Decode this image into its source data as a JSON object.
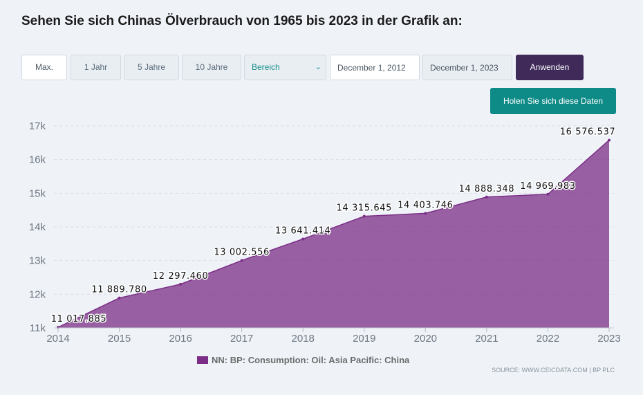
{
  "header": {
    "title": "Sehen Sie sich Chinas Ölverbrauch von 1965 bis 2023 in der Grafik an:"
  },
  "controls": {
    "range_buttons": [
      "Max.",
      "1 Jahr",
      "5 Jahre",
      "10 Jahre"
    ],
    "range_select": "Bereich",
    "start_date": "December 1, 2012",
    "end_date": "December 1, 2023",
    "apply_label": "Anwenden",
    "get_data_label": "Holen Sie sich diese Daten"
  },
  "colors": {
    "series": "#7b2e86",
    "apply": "#3f2a5a",
    "get_data": "#0f8b87"
  },
  "chart_data": {
    "type": "area",
    "title": "",
    "xlabel": "",
    "ylabel": "",
    "x": [
      "2014",
      "2015",
      "2016",
      "2017",
      "2018",
      "2019",
      "2020",
      "2021",
      "2022",
      "2023"
    ],
    "series": [
      {
        "name": "NN: BP: Consumption: Oil: Asia Pacific: China",
        "values": [
          11017.885,
          11889.78,
          12297.46,
          13002.556,
          13641.414,
          14315.645,
          14403.746,
          14888.348,
          14969.983,
          16576.537
        ],
        "labels": [
          "11 017.885",
          "11 889.780",
          "12 297.460",
          "13 002.556",
          "13 641.414",
          "14 315.645",
          "14 403.746",
          "14 888.348",
          "14 969.983",
          "16 576.537"
        ]
      }
    ],
    "ylim": [
      11000,
      17000
    ],
    "yticks": [
      11000,
      12000,
      13000,
      14000,
      15000,
      16000,
      17000
    ],
    "ytick_labels": [
      "11k",
      "12k",
      "13k",
      "14k",
      "15k",
      "16k",
      "17k"
    ],
    "grid": true,
    "legend_position": "bottom-center",
    "source": "SOURCE: WWW.CEICDATA.COM | BP PLC"
  }
}
